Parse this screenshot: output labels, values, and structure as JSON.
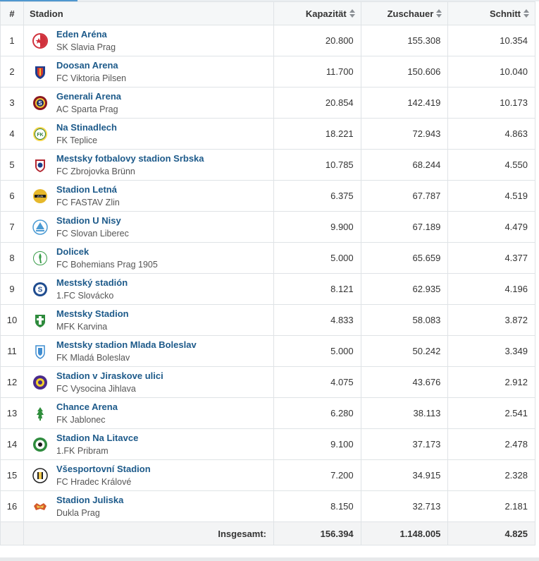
{
  "columns": {
    "rank": "#",
    "stadium": "Stadion",
    "capacity": "Kapazität",
    "spectators": "Zuschauer",
    "average": "Schnitt"
  },
  "rows": [
    {
      "rank": "1",
      "stadium": "Eden Aréna",
      "club": "SK Slavia Prag",
      "capacity": "20.800",
      "spectators": "155.308",
      "average": "10.354",
      "logo": "slavia-logo"
    },
    {
      "rank": "2",
      "stadium": "Doosan Arena",
      "club": "FC Viktoria Pilsen",
      "capacity": "11.700",
      "spectators": "150.606",
      "average": "10.040",
      "logo": "viktoria-logo"
    },
    {
      "rank": "3",
      "stadium": "Generali Arena",
      "club": "AC Sparta Prag",
      "capacity": "20.854",
      "spectators": "142.419",
      "average": "10.173",
      "logo": "sparta-logo"
    },
    {
      "rank": "4",
      "stadium": "Na Stinadlech",
      "club": "FK Teplice",
      "capacity": "18.221",
      "spectators": "72.943",
      "average": "4.863",
      "logo": "teplice-logo"
    },
    {
      "rank": "5",
      "stadium": "Mestsky fotbalovy stadion Srbska",
      "club": "FC Zbrojovka Brünn",
      "capacity": "10.785",
      "spectators": "68.244",
      "average": "4.550",
      "logo": "zbrojovka-logo"
    },
    {
      "rank": "6",
      "stadium": "Stadion Letná",
      "club": "FC FASTAV Zlin",
      "capacity": "6.375",
      "spectators": "67.787",
      "average": "4.519",
      "logo": "zlin-logo"
    },
    {
      "rank": "7",
      "stadium": "Stadion U Nisy",
      "club": "FC Slovan Liberec",
      "capacity": "9.900",
      "spectators": "67.189",
      "average": "4.479",
      "logo": "liberec-logo"
    },
    {
      "rank": "8",
      "stadium": "Dolicek",
      "club": "FC Bohemians Prag 1905",
      "capacity": "5.000",
      "spectators": "65.659",
      "average": "4.377",
      "logo": "bohemians-logo"
    },
    {
      "rank": "9",
      "stadium": "Mestský stadión",
      "club": "1.FC Slovácko",
      "capacity": "8.121",
      "spectators": "62.935",
      "average": "4.196",
      "logo": "slovacko-logo"
    },
    {
      "rank": "10",
      "stadium": "Mestsky Stadion",
      "club": "MFK Karvina",
      "capacity": "4.833",
      "spectators": "58.083",
      "average": "3.872",
      "logo": "karvina-logo"
    },
    {
      "rank": "11",
      "stadium": "Mestsky stadion Mlada Boleslav",
      "club": "FK Mladá Boleslav",
      "capacity": "5.000",
      "spectators": "50.242",
      "average": "3.349",
      "logo": "boleslav-logo"
    },
    {
      "rank": "12",
      "stadium": "Stadion v Jiraskove ulici",
      "club": "FC Vysocina Jihlava",
      "capacity": "4.075",
      "spectators": "43.676",
      "average": "2.912",
      "logo": "jihlava-logo"
    },
    {
      "rank": "13",
      "stadium": "Chance Arena",
      "club": "FK Jablonec",
      "capacity": "6.280",
      "spectators": "38.113",
      "average": "2.541",
      "logo": "jablonec-logo"
    },
    {
      "rank": "14",
      "stadium": "Stadion Na Litavce",
      "club": "1.FK Pribram",
      "capacity": "9.100",
      "spectators": "37.173",
      "average": "2.478",
      "logo": "pribram-logo"
    },
    {
      "rank": "15",
      "stadium": "Všesportovní Stadion",
      "club": "FC Hradec Králové",
      "capacity": "7.200",
      "spectators": "34.915",
      "average": "2.328",
      "logo": "hradec-logo"
    },
    {
      "rank": "16",
      "stadium": "Stadion Juliska",
      "club": "Dukla Prag",
      "capacity": "8.150",
      "spectators": "32.713",
      "average": "2.181",
      "logo": "dukla-logo"
    }
  ],
  "footer": {
    "label": "Insgesamt:",
    "capacity": "156.394",
    "spectators": "1.148.005",
    "average": "4.825"
  }
}
